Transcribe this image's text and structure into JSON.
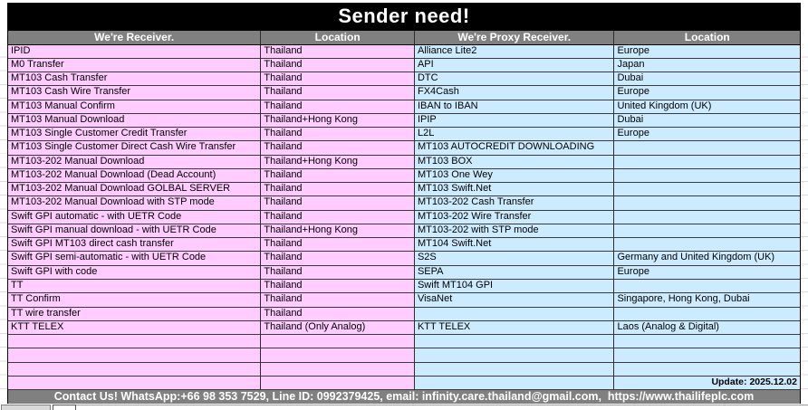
{
  "title": "Sender need!",
  "headers": [
    "We're Receiver.",
    "Location",
    "We're Proxy Receiver.",
    "Location"
  ],
  "rows": [
    [
      "IPID",
      "Thailand",
      "Alliance Lite2",
      "Europe"
    ],
    [
      "M0 Transfer",
      "Thailand",
      "API",
      "Japan"
    ],
    [
      "MT103 Cash Transfer",
      "Thailand",
      "DTC",
      "Dubai"
    ],
    [
      "MT103 Cash Wire Transfer",
      "Thailand",
      "FX4Cash",
      "Europe"
    ],
    [
      "MT103 Manual Confirm",
      "Thailand",
      "IBAN to IBAN",
      "United Kingdom (UK)"
    ],
    [
      "MT103 Manual Download",
      "Thailand+Hong Kong",
      "IPIP",
      "Dubai"
    ],
    [
      "MT103 Single Customer Credit Transfer",
      "Thailand",
      "L2L",
      "Europe"
    ],
    [
      "MT103 Single Customer Direct Cash Wire Transfer",
      "Thailand",
      "MT103 AUTOCREDIT DOWNLOADING",
      ""
    ],
    [
      "MT103-202 Manual Download",
      "Thailand+Hong Kong",
      "MT103 BOX",
      ""
    ],
    [
      "MT103-202 Manual Download (Dead Account)",
      "Thailand",
      "MT103 One Wey",
      ""
    ],
    [
      "MT103-202 Manual Download GOLBAL SERVER",
      "Thailand",
      "MT103 Swift.Net",
      ""
    ],
    [
      "MT103-202 Manual Download with STP mode",
      "Thailand",
      "MT103-202 Cash Transfer",
      ""
    ],
    [
      "Swift GPI automatic - with UETR Code",
      "Thailand",
      "MT103-202 Wire Transfer",
      ""
    ],
    [
      "Swift GPI manual download - with UETR Code",
      "Thailand+Hong Kong",
      "MT103-202 with STP mode",
      ""
    ],
    [
      "Swift GPI MT103 direct cash transfer",
      "Thailand",
      "MT104 Swift.Net",
      ""
    ],
    [
      "Swift GPI semi-automatic - with UETR Code",
      "Thailand",
      "S2S",
      "Germany and United Kingdom (UK)"
    ],
    [
      "Swift GPI with code",
      "Thailand",
      "SEPA",
      "Europe"
    ],
    [
      "TT",
      "Thailand",
      "Swift MT104 GPI",
      ""
    ],
    [
      "TT Confirm",
      "Thailand",
      "VisaNet",
      "Singapore, Hong Kong, Dubai"
    ],
    [
      "TT wire transfer",
      "Thailand",
      "",
      ""
    ],
    [
      "KTT TELEX",
      "Thailand (Only Analog)",
      "KTT TELEX",
      "Laos (Analog & Digital)"
    ],
    [
      "",
      "",
      "",
      ""
    ],
    [
      "",
      "",
      "",
      ""
    ],
    [
      "",
      "",
      "",
      ""
    ],
    [
      "",
      "",
      "",
      "Update: 2025.12.02"
    ]
  ],
  "footer": "Contact Us! WhatsApp:+66 98 353 7529, Line ID: 0992379425, email: infinity.care.thailand@gmail.com,  https://www.thailifeplc.com",
  "colors": {
    "title_bg": "#000000",
    "header_bg": "#808080",
    "receiver_bg": "#FFCCFF",
    "proxy_bg": "#CDEBFF",
    "footer_bg": "#808080",
    "grid_line": "#3a3a3a"
  }
}
